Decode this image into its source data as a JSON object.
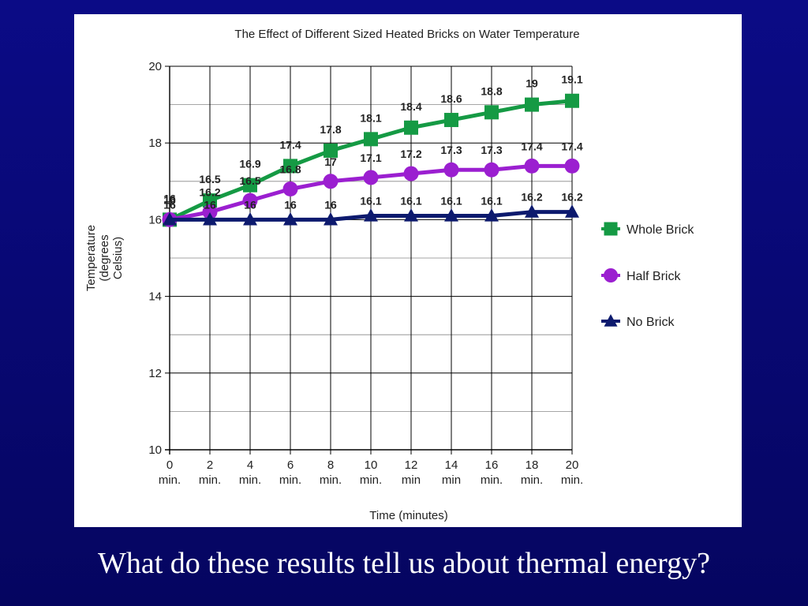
{
  "caption": "What do these results tell us about thermal energy?",
  "chart_data": {
    "type": "line",
    "title": "The Effect of Different Sized Heated Bricks on Water Temperature",
    "xlabel": "Time (minutes)",
    "ylabel_lines": [
      "Temperature",
      "(degrees",
      "Celsius)"
    ],
    "categories": [
      [
        "0",
        "min."
      ],
      [
        "2",
        "min."
      ],
      [
        "4",
        "min."
      ],
      [
        "6",
        "min."
      ],
      [
        "8",
        "min."
      ],
      [
        "10",
        "min."
      ],
      [
        "12",
        "min"
      ],
      [
        "14",
        "min"
      ],
      [
        "16",
        "min."
      ],
      [
        "18",
        "min."
      ],
      [
        "20",
        "min."
      ]
    ],
    "x": [
      0,
      2,
      4,
      6,
      8,
      10,
      12,
      14,
      16,
      18,
      20
    ],
    "ylim": [
      10,
      20
    ],
    "yticks": [
      "10",
      "12",
      "14",
      "16",
      "18",
      "20"
    ],
    "grid": true,
    "legend_position": "right",
    "series": [
      {
        "name": "Whole Brick",
        "marker": "square",
        "color": "#159a44",
        "values": [
          16,
          16.5,
          16.9,
          17.4,
          17.8,
          18.1,
          18.4,
          18.6,
          18.8,
          19,
          19.1
        ],
        "labels": [
          "16",
          "16.5",
          "16.9",
          "17.4",
          "17.8",
          "18.1",
          "18.4",
          "18.6",
          "18.8",
          "19",
          "19.1"
        ]
      },
      {
        "name": "Half Brick",
        "marker": "circle",
        "color": "#9b1fd0",
        "values": [
          16,
          16.2,
          16.5,
          16.8,
          17,
          17.1,
          17.2,
          17.3,
          17.3,
          17.4,
          17.4
        ],
        "labels": [
          "16",
          "16.2",
          "16.5",
          "16.8",
          "17",
          "17.1",
          "17.2",
          "17.3",
          "17.3",
          "17.4",
          "17.4"
        ]
      },
      {
        "name": "No Brick",
        "marker": "triangle",
        "color": "#0d1a6e",
        "values": [
          16,
          16,
          16,
          16,
          16,
          16.1,
          16.1,
          16.1,
          16.1,
          16.2,
          16.2
        ],
        "labels": [
          "16",
          "16",
          "16",
          "16",
          "16",
          "16.1",
          "16.1",
          "16.1",
          "16.1",
          "16.2",
          "16.2"
        ]
      }
    ]
  }
}
